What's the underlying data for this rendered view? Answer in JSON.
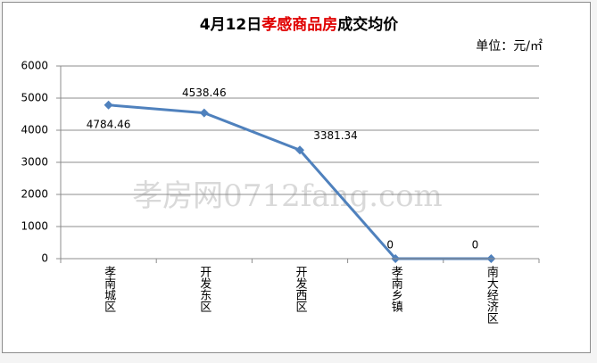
{
  "chart_data": {
    "type": "line",
    "title": [
      "4月12日",
      "孝感商品房",
      "成交均价"
    ],
    "unit_label": "单位：元/㎡",
    "watermark": "孝房网0712fang.com",
    "categories": [
      "孝南城区",
      "开发东区",
      "开发西区",
      "孝南乡镇",
      "南大经济区"
    ],
    "values": [
      4784.46,
      4538.46,
      3381.34,
      0,
      0
    ],
    "color": "#4f81bd",
    "title_colors": [
      "#000000",
      "#e00000",
      "#000000"
    ],
    "ylim": [
      0,
      6000
    ],
    "yticks": [
      0,
      1000,
      2000,
      3000,
      4000,
      5000,
      6000
    ],
    "grid": true
  }
}
